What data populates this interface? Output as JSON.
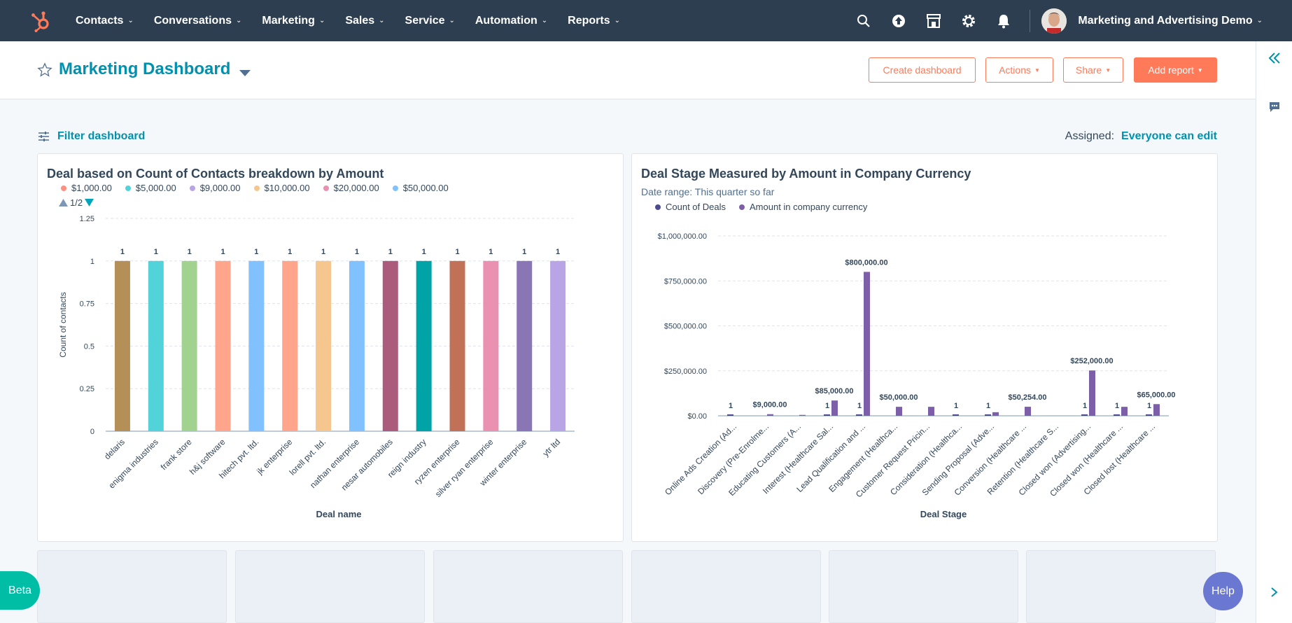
{
  "nav": {
    "logo": "hubspot-sprocket",
    "items": [
      {
        "label": "Contacts"
      },
      {
        "label": "Conversations"
      },
      {
        "label": "Marketing"
      },
      {
        "label": "Sales"
      },
      {
        "label": "Service"
      },
      {
        "label": "Automation"
      },
      {
        "label": "Reports"
      }
    ],
    "account_name": "Marketing and Advertising Demo"
  },
  "header": {
    "title": "Marketing Dashboard",
    "create_dashboard": "Create dashboard",
    "actions": "Actions",
    "share": "Share",
    "add_report": "Add report"
  },
  "filter": {
    "label": "Filter dashboard",
    "assigned_label": "Assigned:",
    "assigned_value": "Everyone can edit"
  },
  "colors": {
    "accent": "#0091ae",
    "orange": "#ff7a59",
    "nav_bg": "#2d3e50",
    "purple": "#7c5fa8"
  },
  "chart_data": [
    {
      "type": "bar",
      "title": "Deal based on Count of Contacts breakdown by Amount",
      "xlabel": "Deal name",
      "ylabel": "Count of contacts",
      "ylim": [
        0,
        1.25
      ],
      "yticks": [
        "0",
        "0.25",
        "0.5",
        "0.75",
        "1",
        "1.25"
      ],
      "pager": "1/2",
      "legend": [
        {
          "name": "$1,000.00",
          "color": "#ff8f80"
        },
        {
          "name": "$5,000.00",
          "color": "#51d3d9"
        },
        {
          "name": "$9,000.00",
          "color": "#b9a5e6"
        },
        {
          "name": "$10,000.00",
          "color": "#f5c78e"
        },
        {
          "name": "$20,000.00",
          "color": "#ea90b1"
        },
        {
          "name": "$50,000.00",
          "color": "#81c1fd"
        }
      ],
      "categories": [
        "delaris",
        "enigma industries",
        "frank store",
        "h&j software",
        "hitech pvt. ltd.",
        "jk enterprise",
        "lorell pvt. ltd.",
        "nathan enterprise",
        "nesar automobiles",
        "reign industry",
        "ryzen enterprise",
        "silver ryan enterprise",
        "winter enterprise",
        "ytr ltd"
      ],
      "values": [
        1,
        1,
        1,
        1,
        1,
        1,
        1,
        1,
        1,
        1,
        1,
        1,
        1,
        1
      ],
      "data_labels": [
        "1",
        "1",
        "1",
        "1",
        "1",
        "1",
        "1",
        "1",
        "1",
        "1",
        "1",
        "1",
        "1",
        "1"
      ],
      "bar_colors": [
        "#b48f58",
        "#51d3d9",
        "#a2d28f",
        "#ffa58c",
        "#81c1fd",
        "#ffa58c",
        "#f5c78e",
        "#81c1fd",
        "#ab5b7c",
        "#00a4a6",
        "#c27159",
        "#ea90b1",
        "#8a75b5",
        "#b9a5e6"
      ]
    },
    {
      "type": "bar",
      "title": "Deal Stage Measured by Amount in Company Currency",
      "subtitle": "Date range: This quarter so far",
      "xlabel": "Deal Stage",
      "ylim": [
        0,
        1000000
      ],
      "yticks": [
        "$0.00",
        "$250,000.00",
        "$500,000.00",
        "$750,000.00",
        "$1,000,000.00"
      ],
      "legend": [
        {
          "name": "Count of Deals",
          "color": "#4f4a8d"
        },
        {
          "name": "Amount in company currency",
          "color": "#7c5fa8"
        }
      ],
      "categories": [
        "Online Ads Creation (Ad...",
        "Discovery (Pre-Enrolme...",
        "Educating Customers (A...",
        "Interest (Healthcare Sal...",
        "Lead Qualification and ...",
        "Engagement (Healthca...",
        "Customer Request Pricin...",
        "Consideration (Healthca...",
        "Sending Proposal (Adve...",
        "Conversion (Healthcare ...",
        "Retention (Healthcare S...",
        "Closed won (Advertising...",
        "Closed won (Healthcare ...",
        "Closed lost (Healthcare ..."
      ],
      "series": [
        {
          "name": "Count of Deals",
          "values": [
            1,
            0,
            0,
            1,
            1,
            0,
            0,
            1,
            1,
            0,
            0,
            1,
            1,
            1
          ]
        },
        {
          "name": "Amount in company currency",
          "values": [
            0,
            9000,
            5000,
            85000,
            800000,
            50000,
            50000,
            0,
            20000,
            50254,
            0,
            252000,
            50000,
            65000
          ]
        }
      ],
      "count_labels": [
        "1",
        "",
        "",
        "1",
        "1",
        "",
        "",
        "1",
        "1",
        "",
        "",
        "1",
        "1",
        "1"
      ],
      "amount_labels": [
        "",
        "$9,000.00",
        "",
        "$85,000.00",
        "$800,000.00",
        "$50,000.00",
        "",
        "",
        "",
        "$50,254.00",
        "",
        "$252,000.00",
        "",
        "$65,000.00"
      ]
    }
  ],
  "beta_label": "Beta",
  "help_label": "Help"
}
